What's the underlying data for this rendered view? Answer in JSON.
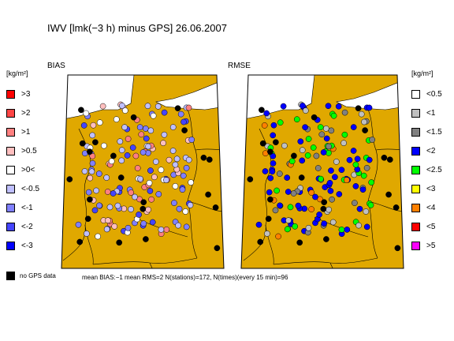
{
  "title": "IWV [lmk(−3 h) minus GPS] 26.06.2007",
  "panels": {
    "bias": {
      "label": "BIAS"
    },
    "rmse": {
      "label": "RMSE"
    }
  },
  "unit_left": "[kg/m²]",
  "unit_right": "[kg/m²]",
  "bias_legend": [
    {
      "label": ">3",
      "color": "#ff0000"
    },
    {
      "label": ">2",
      "color": "#ff4545"
    },
    {
      "label": ">1",
      "color": "#ff8080"
    },
    {
      "label": ">0.5",
      "color": "#ffbfbf"
    },
    {
      "label": ">0<",
      "color": "#ffffff"
    },
    {
      "label": "<-0.5",
      "color": "#bfbfff"
    },
    {
      "label": "<-1",
      "color": "#8080ff"
    },
    {
      "label": "<-2",
      "color": "#4545ff"
    },
    {
      "label": "<-3",
      "color": "#0000ff"
    }
  ],
  "rmse_legend": [
    {
      "label": "<0.5",
      "color": "#ffffff"
    },
    {
      "label": "<1",
      "color": "#c0c0c0"
    },
    {
      "label": "<1.5",
      "color": "#808080"
    },
    {
      "label": "<2",
      "color": "#0000ff"
    },
    {
      "label": "<2.5",
      "color": "#00ff00"
    },
    {
      "label": "<3",
      "color": "#ffff00"
    },
    {
      "label": "<4",
      "color": "#ff8000"
    },
    {
      "label": "<5",
      "color": "#ff0000"
    },
    {
      "label": ">5",
      "color": "#ff00ff"
    }
  ],
  "no_gps": {
    "label": "no GPS data",
    "color": "#000000"
  },
  "footer": "mean BIAS:−1   mean RMS=2   N(stations)=172, N(times)(every 15 min)=96",
  "colors": {
    "land": "#e0a800",
    "sea": "#ffffff",
    "border": "#000000"
  }
}
